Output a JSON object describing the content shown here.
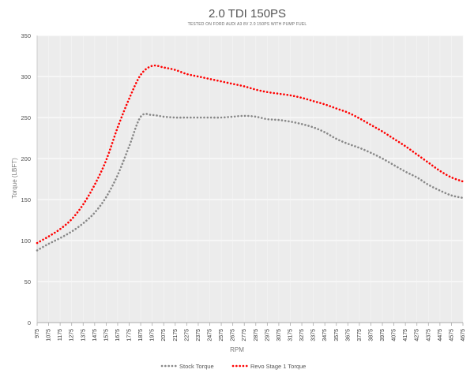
{
  "chart_data": {
    "type": "line",
    "title": "2.0 TDI 150PS",
    "subtitle": "TESTED ON FORD AUDI A3 8V 2.0 150PS WITH PUMP FUEL",
    "xlabel": "RPM",
    "ylabel": "Torque (LBFT)",
    "ylim": [
      0,
      350
    ],
    "yticks": [
      0,
      50,
      100,
      150,
      200,
      250,
      300,
      350
    ],
    "x": [
      975,
      1075,
      1175,
      1275,
      1375,
      1475,
      1575,
      1675,
      1775,
      1875,
      1975,
      2075,
      2175,
      2275,
      2375,
      2475,
      2575,
      2675,
      2775,
      2875,
      2975,
      3075,
      3175,
      3275,
      3375,
      3475,
      3575,
      3675,
      3775,
      3875,
      3975,
      4075,
      4175,
      4275,
      4375,
      4475,
      4575,
      4675
    ],
    "grid": true,
    "legend_position": "bottom-center",
    "series": [
      {
        "name": "Stock Torque",
        "color": "#888888",
        "values": [
          88,
          96,
          103,
          111,
          121,
          134,
          153,
          180,
          215,
          251,
          253,
          251,
          250,
          250,
          250,
          250,
          250,
          251,
          252,
          251,
          248,
          247,
          245,
          242,
          238,
          232,
          224,
          218,
          213,
          207,
          200,
          192,
          184,
          177,
          168,
          161,
          155,
          152
        ]
      },
      {
        "name": "Revo Stage 1 Torque",
        "color": "#ff0000",
        "values": [
          97,
          105,
          114,
          126,
          144,
          168,
          198,
          238,
          273,
          302,
          313,
          311,
          308,
          303,
          300,
          297,
          294,
          291,
          288,
          284,
          281,
          279,
          277,
          274,
          270,
          266,
          261,
          256,
          249,
          241,
          233,
          224,
          215,
          205,
          195,
          185,
          177,
          172
        ]
      }
    ]
  }
}
